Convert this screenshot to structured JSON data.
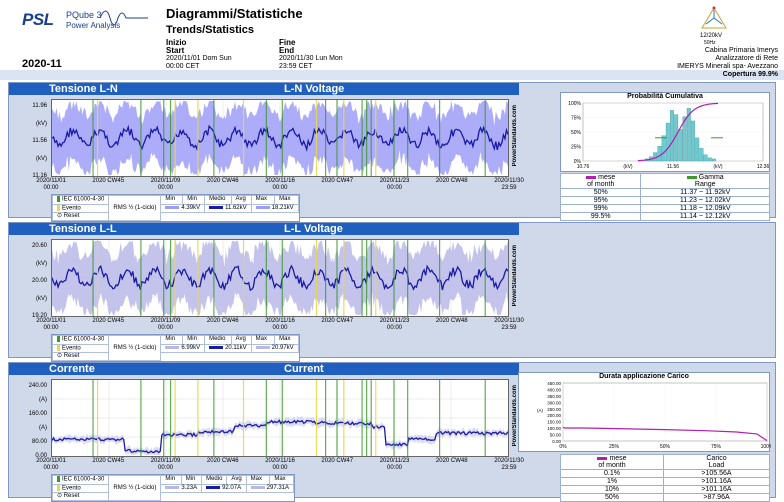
{
  "header": {
    "logo_text": "PSL",
    "logo_product": "PQube 3",
    "logo_subtitle": "Power Analysis",
    "title_it": "Diagrammi/Statistiche",
    "title_en": "Trends/Statistics",
    "start_label_it": "Inizio",
    "start_label_en": "Start",
    "start_date": "2020/11/01 Dom Sun",
    "start_time": "00:00 CET",
    "end_label_it": "Fine",
    "end_label_en": "End",
    "end_date": "2020/11/30 Lun Mon",
    "end_time": "23:59 CET",
    "period": "2020-11",
    "device_voltage": "12/20kV",
    "device_freq": "50Hz",
    "site_line1": "Cabina Primaria Imerys",
    "site_line2": "Analizzatore di Rete",
    "site_line3": "IMERYS Minerali spa- Avezzano",
    "coverage": "Copertura 99.9%"
  },
  "panels": [
    {
      "title_it": "Tensione L-N",
      "title_en": "L-N Voltage",
      "y_ticks": [
        "11.96",
        "(kV)",
        "11.56",
        "(kV)",
        "11.16"
      ],
      "x_ticks": [
        "2020/11/01\n00:00",
        "2020 CW45",
        "2020/11/09\n00:00",
        "2020 CW46",
        "2020/11/16\n00:00",
        "2020 CW47",
        "2020/11/23\n00:00",
        "2020 CW48",
        "2020/11/30\n23:59"
      ],
      "watermark": "PowerStandards.com",
      "legend": {
        "standard": "IEC 61000-4-30",
        "event": "Evento",
        "reset": "Reset",
        "rms": "RMS ½ (1-ciclo)",
        "min_label_it": "Min",
        "min_label_en": "Min",
        "min_value": "4.39kV",
        "avg_label_it": "Medio",
        "avg_label_en": "Avg",
        "avg_value": "11.62kV",
        "max_label_it": "Max",
        "max_label_en": "Max",
        "max_value": "18.21kV"
      }
    },
    {
      "title_it": "Tensione L-L",
      "title_en": "L-L Voltage",
      "y_ticks": [
        "20.60",
        "(kV)",
        "20.00",
        "(kV)",
        "19.20"
      ],
      "x_ticks": [
        "2020/11/01\n00:00",
        "2020 CW45",
        "2020/11/09\n00:00",
        "2020 CW46",
        "2020/11/16\n00:00",
        "2020 CW47",
        "2020/11/23\n00:00",
        "2020 CW48",
        "2020/11/30\n23:59"
      ],
      "watermark": "PowerStandards.com",
      "legend": {
        "standard": "IEC 61000-4-30",
        "event": "Evento",
        "reset": "Reset",
        "rms": "RMS ½ (1-ciclo)",
        "min_label_it": "Min",
        "min_label_en": "Min",
        "min_value": "6.99kV",
        "avg_label_it": "Medio",
        "avg_label_en": "Avg",
        "avg_value": "20.11kV",
        "max_label_it": "Max",
        "max_label_en": "Max",
        "max_value": "20.97kV"
      }
    },
    {
      "title_it": "Corrente",
      "title_en": "Current",
      "y_ticks": [
        "240.00",
        "(A)",
        "160.00",
        "(A)",
        "80.00",
        "0.00"
      ],
      "x_ticks": [
        "2020/11/01\n00:00",
        "2020 CW45",
        "2020/11/09\n00:00",
        "2020 CW46",
        "2020/11/16\n00:00",
        "2020 CW47",
        "2020/11/23\n00:00",
        "2020 CW48",
        "2020/11/30\n23:59"
      ],
      "watermark": "PowerStandards.com",
      "legend": {
        "standard": "IEC 61000-4-30",
        "event": "Evento",
        "reset": "Reset",
        "rms": "RMS ½ (1-ciclo)",
        "min_label_it": "Min",
        "min_label_en": "Min",
        "min_value": "3.23A",
        "avg_label_it": "Medio",
        "avg_label_en": "Avg",
        "avg_value": "92.07A",
        "max_label_it": "Max",
        "max_label_en": "Max",
        "max_value": "297.31A"
      }
    }
  ],
  "cumulative": {
    "title": "Probabilità Cumulativa",
    "y_ticks": [
      "100%",
      "75%",
      "50%",
      "25%",
      "0%"
    ],
    "x_ticks": [
      "10.76",
      "(kV)",
      "11.56",
      "(kV)",
      "12.36"
    ],
    "col_month_it": "mese",
    "col_month_en": "of month",
    "col_range_it": "Gamma",
    "col_range_en": "Range",
    "rows": [
      {
        "pct": "50%",
        "range": "11.37 ~ 11.92kV"
      },
      {
        "pct": "95%",
        "range": "11.23 ~ 12.02kV"
      },
      {
        "pct": "99%",
        "range": "11.18 ~ 12.09kV"
      },
      {
        "pct": "99.5%",
        "range": "11.14 ~ 12.12kV"
      }
    ]
  },
  "load_duration": {
    "title": "Durata applicazione Carico",
    "y_ticks": [
      "450.00",
      "400.00",
      "350.00",
      "300.00",
      "250.00",
      "200.00",
      "150.00",
      "100.00",
      "50.00",
      "0.00"
    ],
    "y_unit": "(A)",
    "x_ticks": [
      "0%",
      "25%",
      "50%",
      "75%",
      "100%"
    ],
    "col_month_it": "mese",
    "col_month_en": "of month",
    "col_load_it": "Carico",
    "col_load_en": "Load",
    "rows": [
      {
        "pct": "0.1%",
        "load": ">105.56A"
      },
      {
        "pct": "1%",
        "load": ">101.16A"
      },
      {
        "pct": "10%",
        "load": ">101.16A"
      },
      {
        "pct": "50%",
        "load": ">87.96A"
      }
    ]
  },
  "colors": {
    "title_bar": "#1f5fbf",
    "envelope_ln": "#9d9df7",
    "avg_line": "#1a1aa8",
    "envelope_ll": "#b9b9e8",
    "event_green": "#3a9a2a",
    "event_yellow": "#e8d84a",
    "histogram": "#6fc9cf",
    "cumulative_curve": "#b21fb0"
  }
}
